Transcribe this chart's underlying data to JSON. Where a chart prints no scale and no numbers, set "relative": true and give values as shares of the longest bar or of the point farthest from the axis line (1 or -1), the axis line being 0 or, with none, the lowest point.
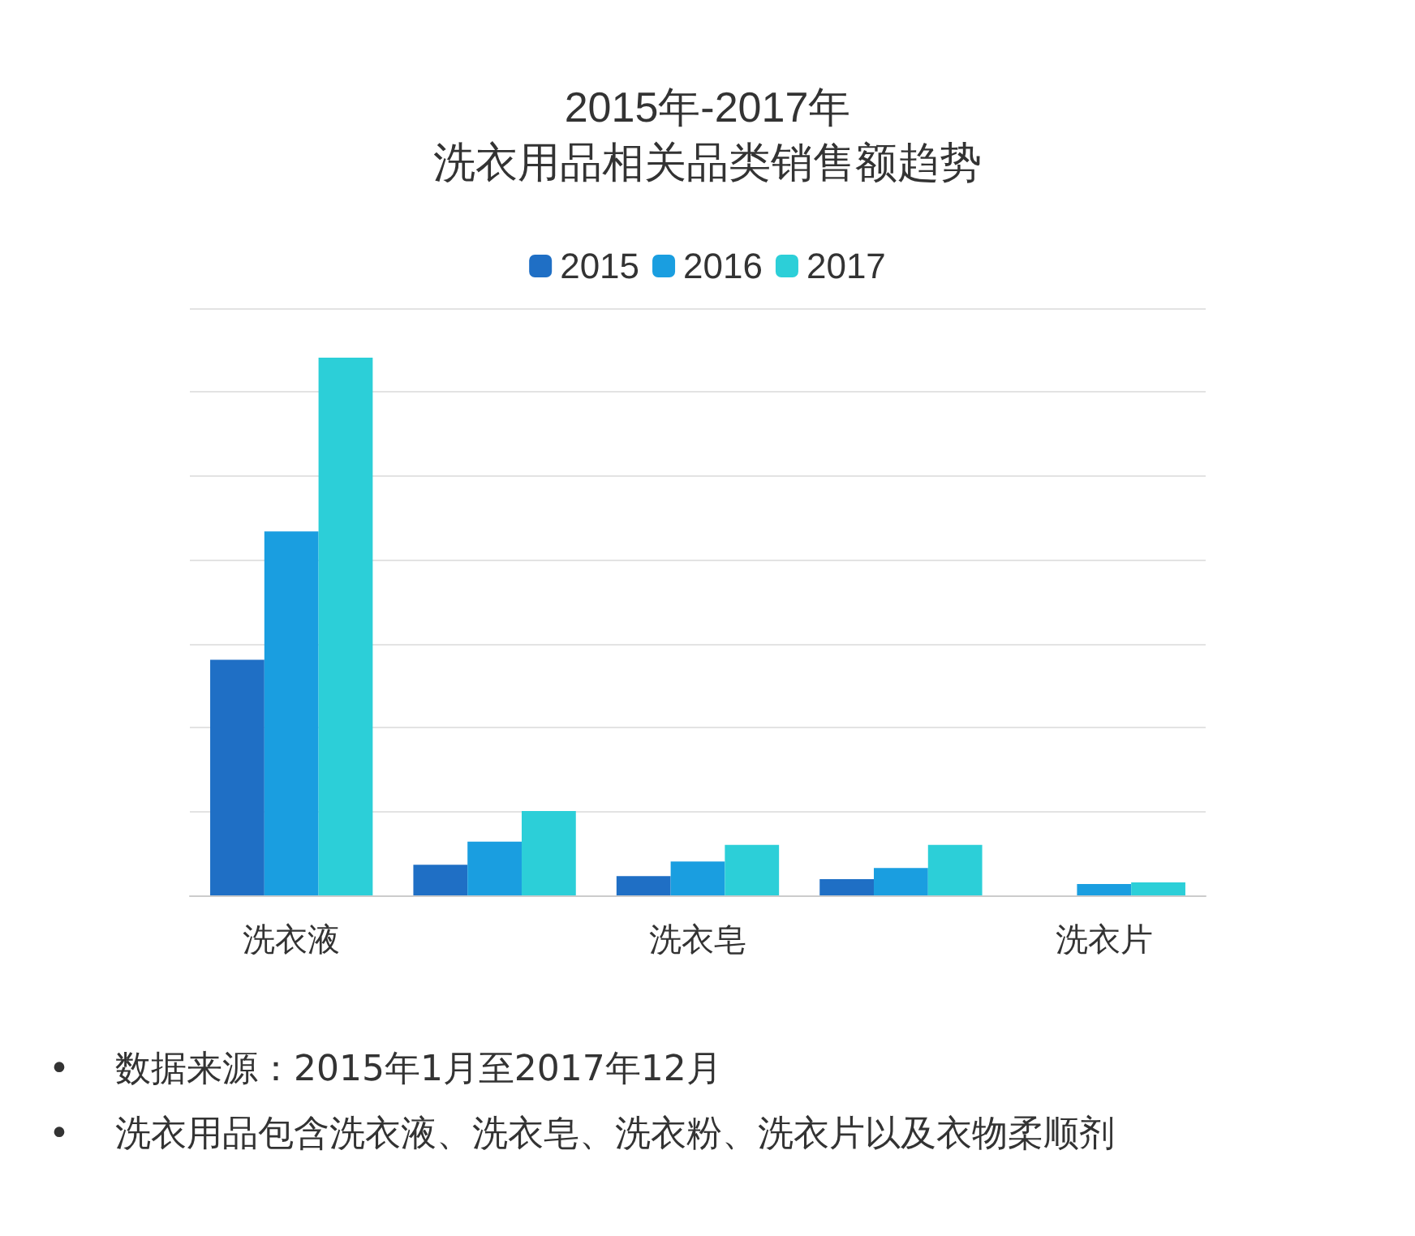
{
  "chart_data": {
    "type": "bar",
    "title": "2015年-2017年",
    "subtitle": "洗衣用品相关品类销售额趋势",
    "categories": [
      "洗衣液",
      null,
      "洗衣皂",
      null,
      "洗衣片"
    ],
    "relative": true,
    "series": [
      {
        "name": "2015",
        "color": "#1f6fc5",
        "values": [
          0.438,
          0.057,
          0.036,
          0.03,
          0
        ]
      },
      {
        "name": "2016",
        "color": "#1a9ee0",
        "values": [
          0.677,
          0.1,
          0.063,
          0.051,
          0.021
        ]
      },
      {
        "name": "2017",
        "color": "#2ccfd8",
        "values": [
          1,
          0.157,
          0.094,
          0.094,
          0.024
        ]
      }
    ],
    "grid": "y",
    "legend": "top",
    "annotations": [
      "•    数据来源：2015年1月至2017年12月",
      "•    洗衣用品包含洗衣液、洗衣皂、洗衣粉、洗衣片以及衣物柔顺剂"
    ]
  }
}
